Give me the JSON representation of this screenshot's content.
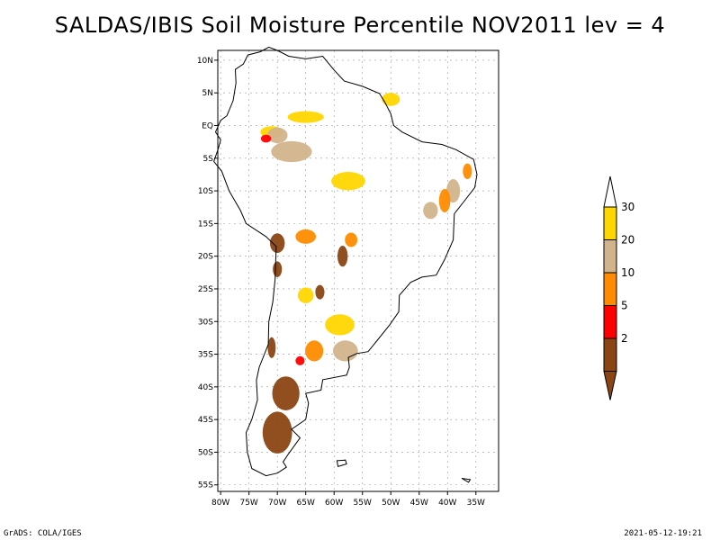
{
  "title": "SALDAS/IBIS Soil Moisture Percentile NOV2011 lev = 4",
  "footer": {
    "left": "GrADS: COLA/IGES",
    "right": "2021-05-12-19:21"
  },
  "map": {
    "lon_range": [
      -80.5,
      -31
    ],
    "lat_range": [
      -56,
      11.5
    ],
    "lon_ticks": [
      {
        "value": -80,
        "label": "80W"
      },
      {
        "value": -75,
        "label": "75W"
      },
      {
        "value": -70,
        "label": "70W"
      },
      {
        "value": -65,
        "label": "65W"
      },
      {
        "value": -60,
        "label": "60W"
      },
      {
        "value": -55,
        "label": "55W"
      },
      {
        "value": -50,
        "label": "50W"
      },
      {
        "value": -45,
        "label": "45W"
      },
      {
        "value": -40,
        "label": "40W"
      },
      {
        "value": -35,
        "label": "35W"
      }
    ],
    "lat_ticks": [
      {
        "value": 10,
        "label": "10N"
      },
      {
        "value": 5,
        "label": "5N"
      },
      {
        "value": 0,
        "label": "EQ"
      },
      {
        "value": -5,
        "label": "5S"
      },
      {
        "value": -10,
        "label": "10S"
      },
      {
        "value": -15,
        "label": "15S"
      },
      {
        "value": -20,
        "label": "20S"
      },
      {
        "value": -25,
        "label": "25S"
      },
      {
        "value": -30,
        "label": "30S"
      },
      {
        "value": -35,
        "label": "35S"
      },
      {
        "value": -40,
        "label": "40S"
      },
      {
        "value": -45,
        "label": "45S"
      },
      {
        "value": -50,
        "label": "50S"
      },
      {
        "value": -55,
        "label": "55S"
      }
    ],
    "regions": [
      {
        "color": "#ffd700",
        "lon": -50,
        "lat": 4,
        "rx": 1.6,
        "ry": 1.0
      },
      {
        "color": "#ffd700",
        "lon": -65,
        "lat": 1.3,
        "rx": 3.2,
        "ry": 0.9
      },
      {
        "color": "#ffd700",
        "lon": -57.5,
        "lat": -8.5,
        "rx": 3.0,
        "ry": 1.4
      },
      {
        "color": "#ffd700",
        "lon": -71,
        "lat": -1,
        "rx": 2.0,
        "ry": 0.9
      },
      {
        "color": "#ffd700",
        "lon": -59,
        "lat": -30.5,
        "rx": 2.6,
        "ry": 1.6
      },
      {
        "color": "#ffd700",
        "lon": -65,
        "lat": -26,
        "rx": 1.4,
        "ry": 1.2
      },
      {
        "color": "#d2b48c",
        "lon": -67.5,
        "lat": -4,
        "rx": 3.6,
        "ry": 1.6
      },
      {
        "color": "#d2b48c",
        "lon": -70,
        "lat": -1.5,
        "rx": 1.8,
        "ry": 1.2
      },
      {
        "color": "#d2b48c",
        "lon": -58,
        "lat": -34.5,
        "rx": 2.2,
        "ry": 1.6
      },
      {
        "color": "#d2b48c",
        "lon": -39,
        "lat": -10,
        "rx": 1.2,
        "ry": 1.8
      },
      {
        "color": "#d2b48c",
        "lon": -43,
        "lat": -13,
        "rx": 1.3,
        "ry": 1.3
      },
      {
        "color": "#ff8c00",
        "lon": -40.5,
        "lat": -11.5,
        "rx": 1.0,
        "ry": 1.8
      },
      {
        "color": "#ff8c00",
        "lon": -65,
        "lat": -17,
        "rx": 1.8,
        "ry": 1.1
      },
      {
        "color": "#ff8c00",
        "lon": -57,
        "lat": -17.5,
        "rx": 1.1,
        "ry": 1.1
      },
      {
        "color": "#ff8c00",
        "lon": -63.5,
        "lat": -34.5,
        "rx": 1.6,
        "ry": 1.6
      },
      {
        "color": "#ff8c00",
        "lon": -36.5,
        "lat": -7,
        "rx": 0.8,
        "ry": 1.2
      },
      {
        "color": "#ff0000",
        "lon": -72,
        "lat": -2,
        "rx": 0.9,
        "ry": 0.6
      },
      {
        "color": "#ff0000",
        "lon": -66,
        "lat": -36,
        "rx": 0.8,
        "ry": 0.7
      },
      {
        "color": "#8b4513",
        "lon": -68.5,
        "lat": -41,
        "rx": 2.4,
        "ry": 2.6
      },
      {
        "color": "#8b4513",
        "lon": -70,
        "lat": -47,
        "rx": 2.6,
        "ry": 3.2
      },
      {
        "color": "#8b4513",
        "lon": -70,
        "lat": -18,
        "rx": 1.3,
        "ry": 1.5
      },
      {
        "color": "#8b4513",
        "lon": -58.5,
        "lat": -20,
        "rx": 0.9,
        "ry": 1.6
      },
      {
        "color": "#8b4513",
        "lon": -62.5,
        "lat": -25.5,
        "rx": 0.8,
        "ry": 1.1
      },
      {
        "color": "#8b4513",
        "lon": -71,
        "lat": -34,
        "rx": 0.7,
        "ry": 1.6
      },
      {
        "color": "#8b4513",
        "lon": -70,
        "lat": -22,
        "rx": 0.8,
        "ry": 1.2
      }
    ]
  },
  "legend": {
    "entries": [
      {
        "label": "30",
        "color": "#ffd700"
      },
      {
        "label": "20",
        "color": "#d2b48c"
      },
      {
        "label": "10",
        "color": "#ff8c00"
      },
      {
        "label": "5",
        "color": "#ff0000"
      },
      {
        "label": "2",
        "color": "#8b4513"
      }
    ]
  }
}
